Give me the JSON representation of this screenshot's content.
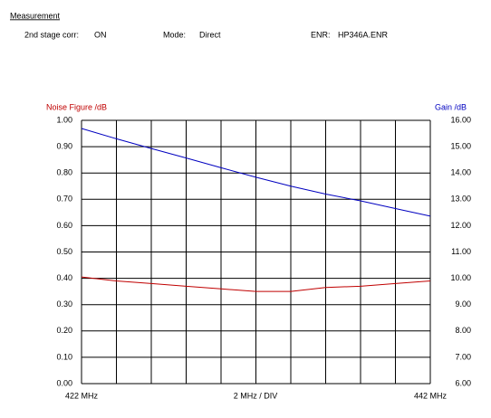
{
  "header": {
    "title": "Measurement",
    "fields": [
      {
        "label": "2nd stage corr:",
        "value": "ON"
      },
      {
        "label": "Mode:",
        "value": "Direct"
      },
      {
        "label": "ENR:",
        "value": "HP346A.ENR"
      }
    ]
  },
  "chart_data": {
    "type": "line",
    "y_label": "Noise Figure /dB",
    "y2_label": "Gain /dB",
    "x_scale_label": "2 MHz / DIV",
    "x": [
      422,
      424,
      426,
      428,
      430,
      432,
      434,
      436,
      438,
      440,
      442
    ],
    "series": [
      {
        "name": "Noise Figure /dB",
        "color": "#c00000",
        "values": [
          0.405,
          0.39,
          0.38,
          0.37,
          0.36,
          0.35,
          0.35,
          0.365,
          0.37,
          0.38,
          0.39
        ]
      },
      {
        "name": "Gain /dB",
        "color": "#0000c0",
        "axis": "y2",
        "values": [
          15.69,
          15.3,
          14.93,
          14.57,
          14.2,
          13.84,
          13.5,
          13.2,
          12.94,
          12.65,
          12.36
        ]
      }
    ],
    "xlim": [
      422,
      442
    ],
    "xticks": [
      {
        "value": 422,
        "label": "422 MHz"
      },
      {
        "value": 424,
        "label": null
      },
      {
        "value": 426,
        "label": null
      },
      {
        "value": 428,
        "label": null
      },
      {
        "value": 430,
        "label": null
      },
      {
        "value": 432,
        "label": null
      },
      {
        "value": 434,
        "label": null
      },
      {
        "value": 436,
        "label": null
      },
      {
        "value": 438,
        "label": null
      },
      {
        "value": 440,
        "label": null
      },
      {
        "value": 442,
        "label": "442 MHz"
      }
    ],
    "ylim": [
      0,
      1
    ],
    "yticks": [
      {
        "value": 0,
        "label": "0.00"
      },
      {
        "value": 0.1,
        "label": "0.10"
      },
      {
        "value": 0.2,
        "label": "0.20"
      },
      {
        "value": 0.3,
        "label": "0.30"
      },
      {
        "value": 0.4,
        "label": "0.40"
      },
      {
        "value": 0.5,
        "label": "0.50"
      },
      {
        "value": 0.6,
        "label": "0.60"
      },
      {
        "value": 0.7,
        "label": "0.70"
      },
      {
        "value": 0.8,
        "label": "0.80"
      },
      {
        "value": 0.9,
        "label": "0.90"
      },
      {
        "value": 1,
        "label": "1.00"
      }
    ],
    "y2lim": [
      6,
      16
    ],
    "y2ticks": [
      {
        "value": 6,
        "label": "6.00"
      },
      {
        "value": 7,
        "label": "7.00"
      },
      {
        "value": 8,
        "label": "8.00"
      },
      {
        "value": 9,
        "label": "9.00"
      },
      {
        "value": 10,
        "label": "10.00"
      },
      {
        "value": 11,
        "label": "11.00"
      },
      {
        "value": 12,
        "label": "12.00"
      },
      {
        "value": 13,
        "label": "13.00"
      },
      {
        "value": 14,
        "label": "14.00"
      },
      {
        "value": 15,
        "label": "15.00"
      },
      {
        "value": 16,
        "label": "16.00"
      }
    ],
    "grid": true
  }
}
